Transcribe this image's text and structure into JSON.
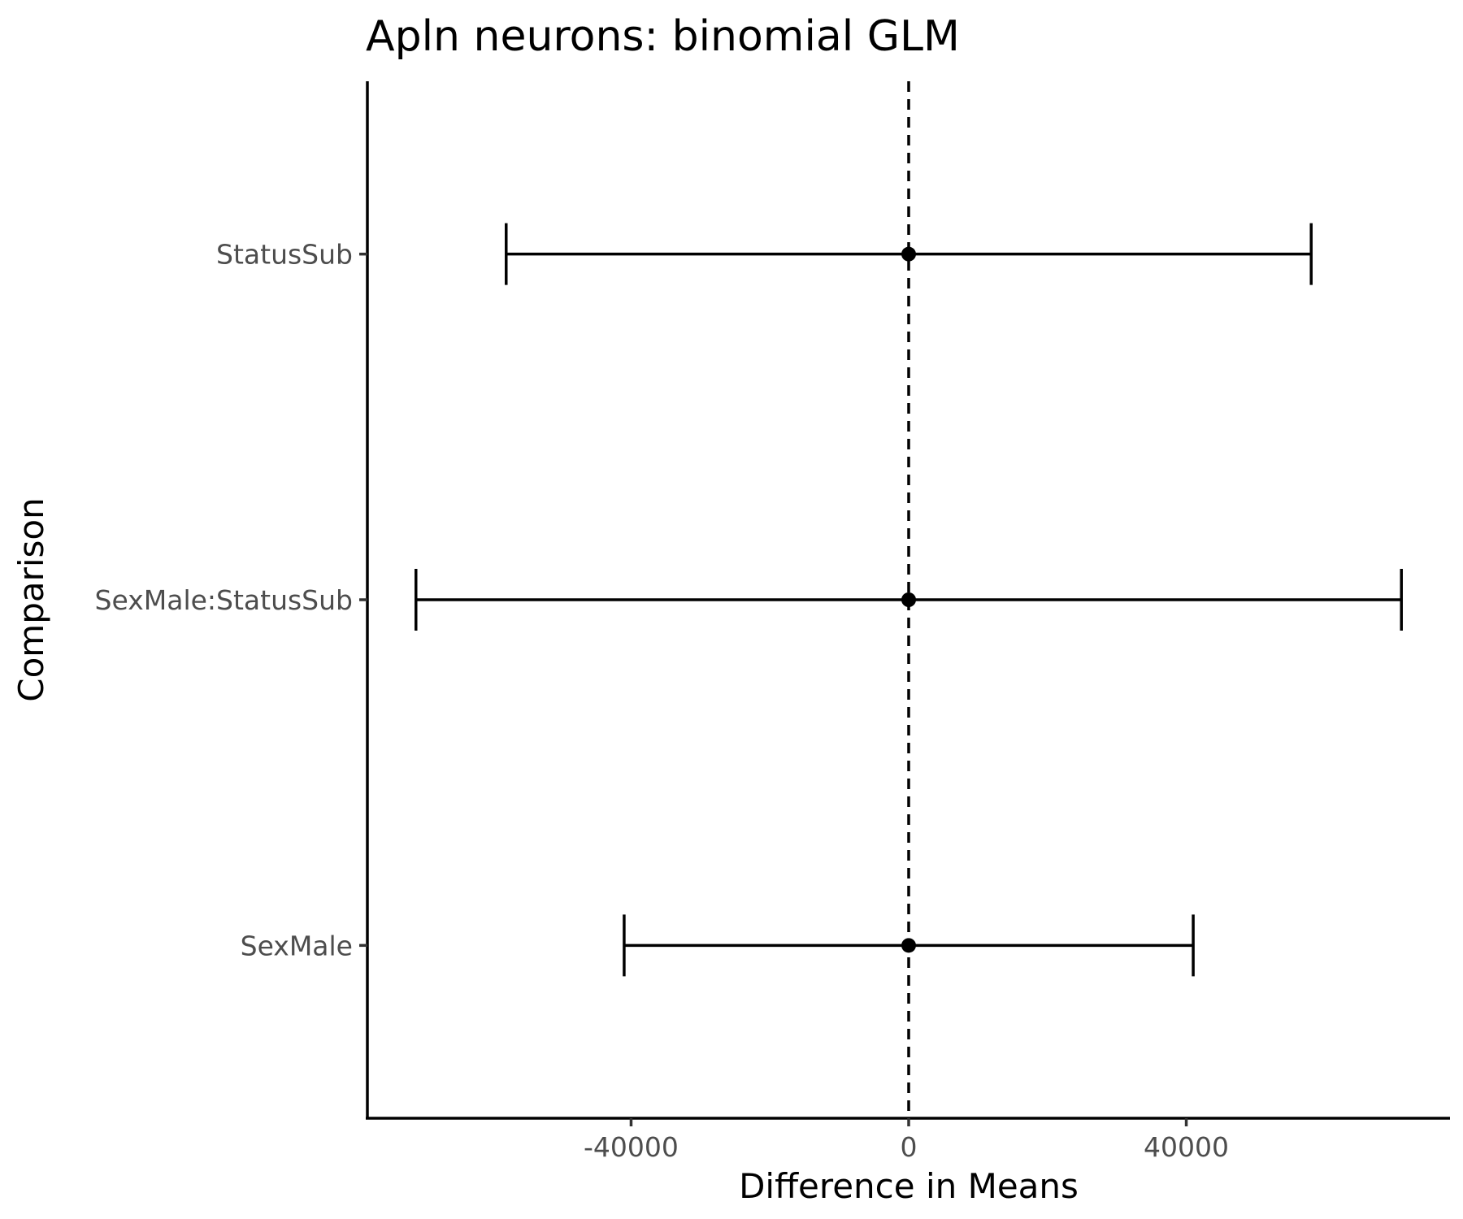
{
  "chart_data": {
    "type": "errorbar",
    "title": "Apln neurons: binomial GLM",
    "xlabel": "Difference in Means",
    "ylabel": "Comparison",
    "categories": [
      "SexMale",
      "SexMale:StatusSub",
      "StatusSub"
    ],
    "estimates": [
      0,
      0,
      0
    ],
    "lower": [
      -41000,
      -71000,
      -58000
    ],
    "upper": [
      41000,
      71000,
      58000
    ],
    "xlim": [
      -78000,
      78000
    ],
    "xticks": [
      -40000,
      0,
      40000
    ],
    "xtick_labels": [
      "-40000",
      "0",
      "40000"
    ],
    "reference_line": {
      "x": 0,
      "style": "dashed"
    },
    "grid": false,
    "legend": "none"
  }
}
